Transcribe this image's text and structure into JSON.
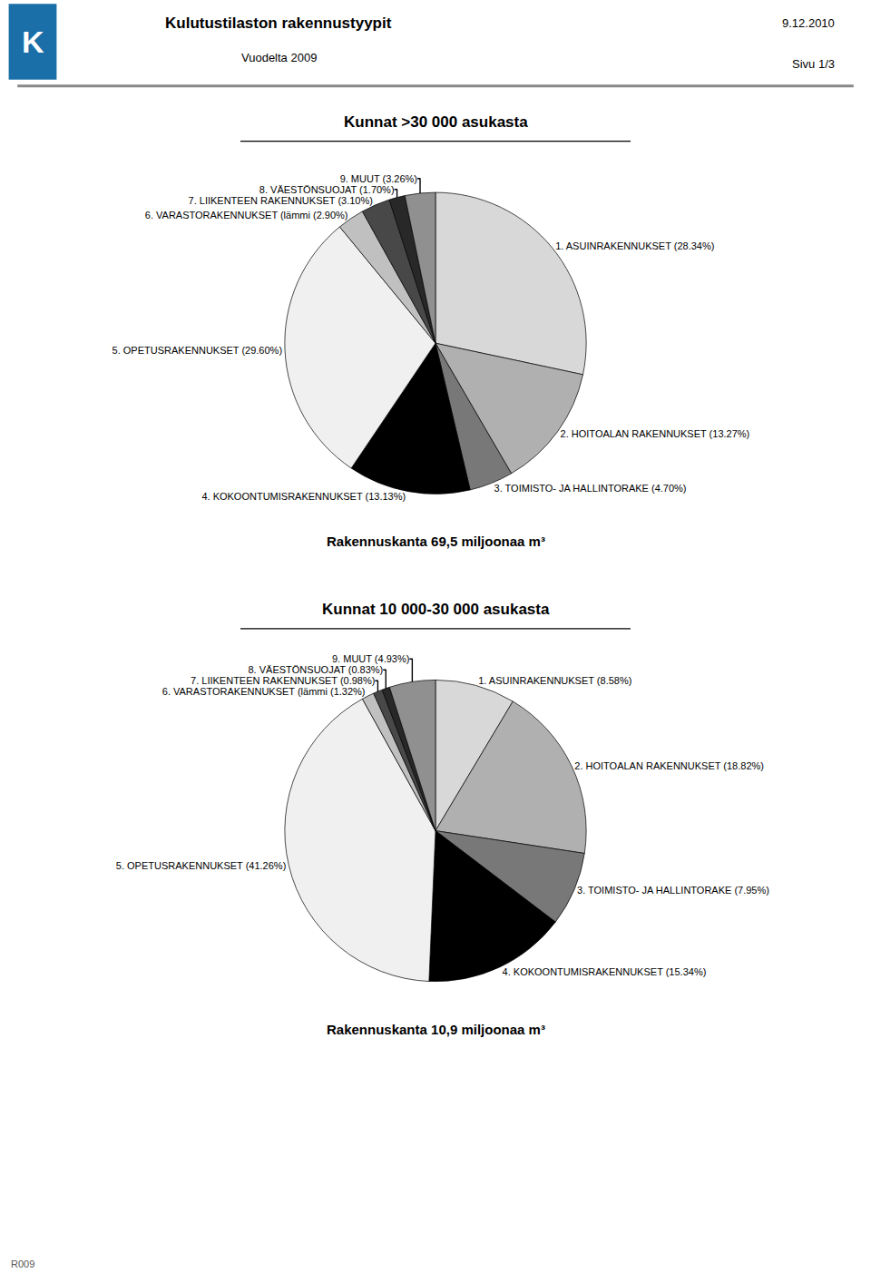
{
  "title": "Kulutustilaston rakennustyypit",
  "subtitle": "Vuodelta 2009",
  "annotations": [
    "9.12.2010",
    "Sivu 1/3",
    "R009",
    "K"
  ],
  "chart_data": [
    {
      "type": "pie",
      "title": "Kunnat >30 000 asukasta",
      "subtitle": "Rakennuskanta 69,5 miljoonaa m³",
      "categories": [
        "1. ASUINRAKENNUKSET (28.34%)",
        "2. HOITOALAN RAKENNUKSET (13.27%)",
        "3. TOIMISTO- JA HALLINTORAKE (4.70%)",
        "4. KOKOONTUMISRAKENNUKSET (13.13%)",
        "5. OPETUSRAKENNUKSET (29.60%)",
        "6. VARASTORAKENNUKSET (lämmi (2.90%)",
        "7. LIIKENTEEN RAKENNUKSET (3.10%)",
        "8. VÄESTÖNSUOJAT (1.70%)",
        "9. MUUT (3.26%)"
      ],
      "values": [
        28.34,
        13.27,
        4.7,
        13.13,
        29.6,
        2.9,
        3.1,
        1.7,
        3.26
      ],
      "colors": [
        "#d8d8d8",
        "#b0b0b0",
        "#787878",
        "#000000",
        "#f0f0f0",
        "#c0c0c0",
        "#484848",
        "#282828",
        "#909090"
      ]
    },
    {
      "type": "pie",
      "title": "Kunnat 10 000-30 000 asukasta",
      "subtitle": "Rakennuskanta 10,9 miljoonaa m³",
      "categories": [
        "1. ASUINRAKENNUKSET (8.58%)",
        "2. HOITOALAN RAKENNUKSET (18.82%)",
        "3. TOIMISTO- JA HALLINTORAKE (7.95%)",
        "4. KOKOONTUMISRAKENNUKSET (15.34%)",
        "5. OPETUSRAKENNUKSET (41.26%)",
        "6. VARASTORAKENNUKSET (lämmi (1.32%)",
        "7. LIIKENTEEN RAKENNUKSET (0.98%)",
        "8. VÄESTÖNSUOJAT (0.83%)",
        "9. MUUT (4.93%)"
      ],
      "values": [
        8.58,
        18.82,
        7.95,
        15.34,
        41.26,
        1.32,
        0.98,
        0.83,
        4.93
      ],
      "colors": [
        "#d8d8d8",
        "#b0b0b0",
        "#787878",
        "#000000",
        "#f0f0f0",
        "#c0c0c0",
        "#484848",
        "#282828",
        "#909090"
      ]
    }
  ]
}
